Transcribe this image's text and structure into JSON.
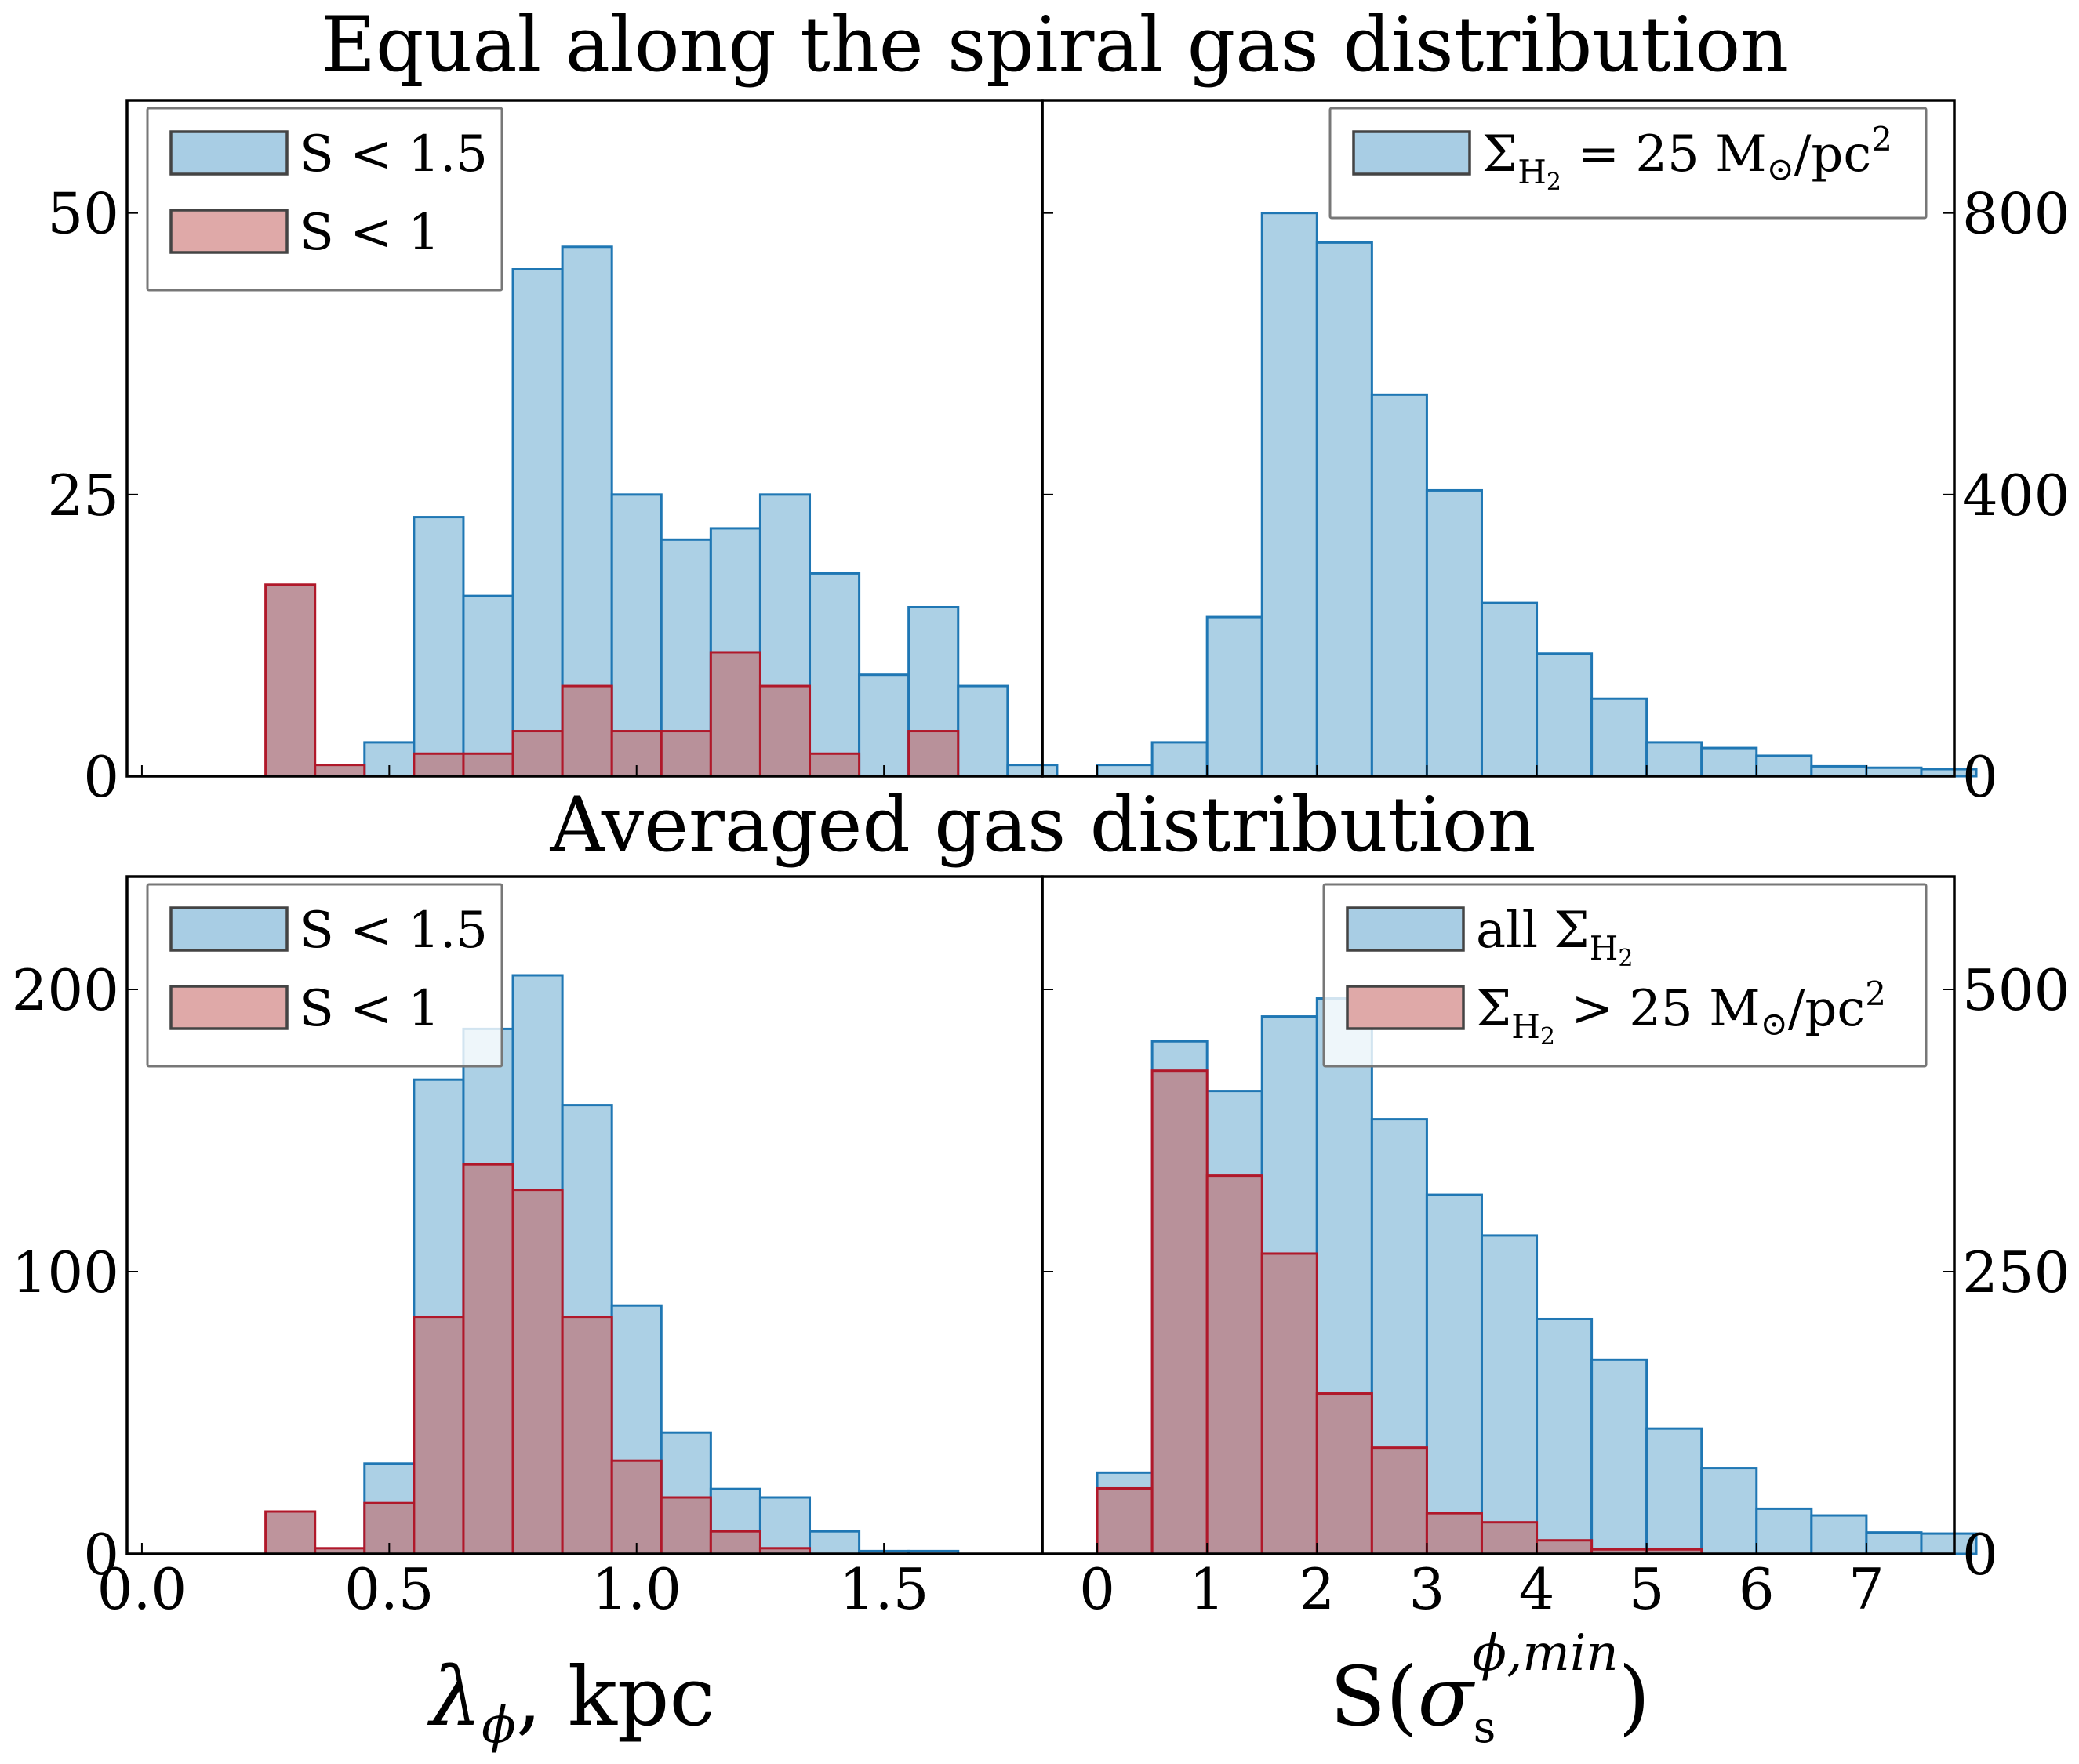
{
  "titles": {
    "top": "Equal along the spiral gas distribution",
    "bottom": "Averaged gas distribution"
  },
  "xlabels": {
    "left": {
      "greek": "λ",
      "sub": "ϕ",
      "rest": ", kpc"
    },
    "right": {
      "pre": "S(",
      "sigma": "σ",
      "sub": "s",
      "sup": "ϕ,min",
      "post": ")"
    }
  },
  "colors": {
    "blue_fill": "#a8cde4",
    "blue_edge": "#1f77b4",
    "red_fill": "#b98b94",
    "red_edge": "#b0182a",
    "red_legend": "#dfa9a8"
  },
  "chart_data": [
    {
      "id": "top-left",
      "type": "bar",
      "side": "left",
      "title": "Equal along the spiral gas distribution",
      "xlim": [
        -0.03,
        1.82
      ],
      "ylim": [
        0,
        60
      ],
      "yticks": [
        0,
        25,
        50
      ],
      "xticks": [
        0.0,
        0.5,
        1.0,
        1.5
      ],
      "bin_width": 0.1,
      "bins_start": [
        0.25,
        0.35,
        0.45,
        0.55,
        0.65,
        0.75,
        0.85,
        0.95,
        1.05,
        1.15,
        1.25,
        1.35,
        1.45,
        1.55,
        1.65,
        1.75
      ],
      "series": [
        {
          "name": "S < 1.5",
          "color": "blue",
          "values": [
            0,
            0,
            3,
            23,
            16,
            45,
            47,
            25,
            21,
            22,
            25,
            18,
            9,
            15,
            8,
            1
          ]
        },
        {
          "name": "S < 1",
          "color": "red",
          "values": [
            17,
            1,
            0,
            2,
            2,
            4,
            8,
            4,
            4,
            11,
            8,
            2,
            0,
            4,
            0,
            0
          ]
        }
      ],
      "legend": {
        "placement": "upper-left",
        "entries": [
          "S < 1.5",
          "S < 1"
        ]
      }
    },
    {
      "id": "top-right",
      "type": "bar",
      "side": "right",
      "xlim": [
        -0.5,
        7.8
      ],
      "ylim": [
        0,
        960
      ],
      "yticks": [
        0,
        400,
        800
      ],
      "xticks": [
        0,
        1,
        2,
        3,
        4,
        5,
        6,
        7
      ],
      "bin_width": 0.5,
      "bins_start": [
        0,
        0.5,
        1.0,
        1.5,
        2.0,
        2.5,
        3.0,
        3.5,
        4.0,
        4.5,
        5.0,
        5.5,
        6.0,
        6.5,
        7.0,
        7.5
      ],
      "series": [
        {
          "name": "Σ_H2 = 25 M⊙/pc²",
          "color": "blue",
          "values": [
            16,
            48,
            226,
            800,
            758,
            542,
            406,
            246,
            174,
            110,
            48,
            40,
            29,
            14,
            12,
            10
          ]
        }
      ],
      "legend": {
        "placement": "upper-right",
        "entries": [
          {
            "sym": "Σ",
            "sub": "H",
            "subsub": "2",
            "rest": " = 25 M",
            "sun": "⊙",
            "unit": "/pc",
            "sup": "2"
          }
        ]
      }
    },
    {
      "id": "bottom-left",
      "type": "bar",
      "side": "left",
      "title": "Averaged gas distribution",
      "xlim": [
        -0.03,
        1.82
      ],
      "ylim": [
        0,
        240
      ],
      "yticks": [
        0,
        100,
        200
      ],
      "xticks": [
        0.0,
        0.5,
        1.0,
        1.5
      ],
      "xticklabels": [
        "0.0",
        "0.5",
        "1.0",
        "1.5"
      ],
      "bin_width": 0.1,
      "bins_start": [
        0.25,
        0.35,
        0.45,
        0.55,
        0.65,
        0.75,
        0.85,
        0.95,
        1.05,
        1.15,
        1.25,
        1.35,
        1.45,
        1.55,
        1.65,
        1.75
      ],
      "series": [
        {
          "name": "S < 1.5",
          "color": "blue",
          "values": [
            0,
            0,
            32,
            168,
            186,
            205,
            159,
            88,
            43,
            23,
            20,
            8,
            1,
            1,
            0,
            0
          ]
        },
        {
          "name": "S < 1",
          "color": "red",
          "values": [
            15,
            2,
            18,
            84,
            138,
            129,
            84,
            33,
            20,
            8,
            2,
            0,
            0,
            0,
            0,
            0
          ]
        }
      ],
      "legend": {
        "placement": "upper-left",
        "entries": [
          "S < 1.5",
          "S < 1"
        ]
      }
    },
    {
      "id": "bottom-right",
      "type": "bar",
      "side": "right",
      "xlim": [
        -0.5,
        7.8
      ],
      "ylim": [
        0,
        600
      ],
      "yticks": [
        0,
        250,
        500
      ],
      "xticks": [
        0,
        1,
        2,
        3,
        4,
        5,
        6,
        7
      ],
      "xticklabels": [
        "0",
        "1",
        "2",
        "3",
        "4",
        "5",
        "6",
        "7"
      ],
      "bin_width": 0.5,
      "bins_start": [
        0,
        0.5,
        1.0,
        1.5,
        2.0,
        2.5,
        3.0,
        3.5,
        4.0,
        4.5,
        5.0,
        5.5,
        6.0,
        6.5,
        7.0,
        7.5
      ],
      "series": [
        {
          "name": "all Σ_H2",
          "color": "blue",
          "values": [
            72,
            454,
            410,
            476,
            492,
            385,
            318,
            282,
            208,
            172,
            111,
            76,
            40,
            34,
            19,
            18
          ]
        },
        {
          "name": "Σ_H2 > 25 M⊙/pc²",
          "color": "red",
          "values": [
            58,
            428,
            335,
            266,
            142,
            94,
            36,
            28,
            12,
            4,
            4,
            0,
            0,
            0,
            0,
            0
          ]
        }
      ],
      "legend": {
        "placement": "upper-right",
        "entries": [
          {
            "label": "all ",
            "sym": "Σ",
            "sub": "H",
            "subsub": "2"
          },
          {
            "sym": "Σ",
            "sub": "H",
            "subsub": "2",
            "rest": " > 25 M",
            "sun": "⊙",
            "unit": "/pc",
            "sup": "2"
          }
        ]
      }
    }
  ]
}
